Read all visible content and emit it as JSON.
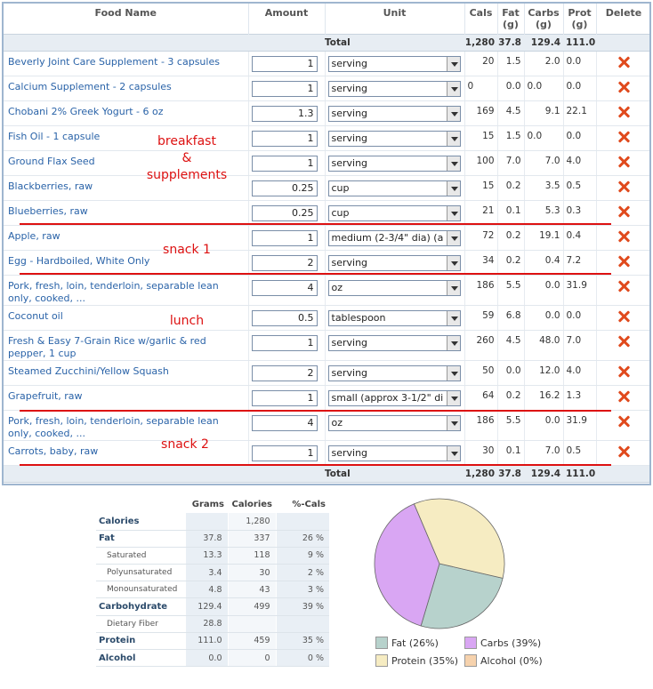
{
  "headers": {
    "food": "Food Name",
    "amount": "Amount",
    "unit": "Unit",
    "cals": "Cals",
    "fat": "Fat (g)",
    "carbs": "Carbs (g)",
    "prot": "Prot (g)",
    "delete": "Delete"
  },
  "total": {
    "label": "Total",
    "cals": "1,280",
    "fat": "37.8",
    "carbs": "129.4",
    "prot": "111.0"
  },
  "foods": [
    {
      "name": "Beverly Joint Care Supplement - 3 capsules",
      "amount": "1",
      "unit": "serving",
      "cals": "20",
      "fat": "1.5",
      "carbs": "2.0",
      "prot": "0.0"
    },
    {
      "name": "Calcium Supplement - 2 capsules",
      "amount": "1",
      "unit": "serving",
      "cals": "0",
      "fat": "0.0",
      "carbs": "0.0",
      "prot": "0.0"
    },
    {
      "name": "Chobani 2% Greek Yogurt - 6 oz",
      "amount": "1.3",
      "unit": "serving",
      "cals": "169",
      "fat": "4.5",
      "carbs": "9.1",
      "prot": "22.1"
    },
    {
      "name": "Fish Oil - 1 capsule",
      "amount": "1",
      "unit": "serving",
      "cals": "15",
      "fat": "1.5",
      "carbs": "0.0",
      "prot": "0.0"
    },
    {
      "name": "Ground Flax Seed",
      "amount": "1",
      "unit": "serving",
      "cals": "100",
      "fat": "7.0",
      "carbs": "7.0",
      "prot": "4.0"
    },
    {
      "name": "Blackberries, raw",
      "amount": "0.25",
      "unit": "cup",
      "cals": "15",
      "fat": "0.2",
      "carbs": "3.5",
      "prot": "0.5"
    },
    {
      "name": "Blueberries, raw",
      "amount": "0.25",
      "unit": "cup",
      "cals": "21",
      "fat": "0.1",
      "carbs": "5.3",
      "prot": "0.3"
    },
    {
      "name": "Apple, raw",
      "amount": "1",
      "unit": "medium (2-3/4\" dia) (a",
      "cals": "72",
      "fat": "0.2",
      "carbs": "19.1",
      "prot": "0.4"
    },
    {
      "name": "Egg - Hardboiled, White Only",
      "amount": "2",
      "unit": "serving",
      "cals": "34",
      "fat": "0.2",
      "carbs": "0.4",
      "prot": "7.2"
    },
    {
      "name": "Pork, fresh, loin, tenderloin, separable lean only, cooked, ...",
      "amount": "4",
      "unit": "oz",
      "cals": "186",
      "fat": "5.5",
      "carbs": "0.0",
      "prot": "31.9"
    },
    {
      "name": "Coconut oil",
      "amount": "0.5",
      "unit": "tablespoon",
      "cals": "59",
      "fat": "6.8",
      "carbs": "0.0",
      "prot": "0.0"
    },
    {
      "name": "Fresh & Easy 7-Grain Rice w/garlic & red pepper, 1 cup",
      "amount": "1",
      "unit": "serving",
      "cals": "260",
      "fat": "4.5",
      "carbs": "48.0",
      "prot": "7.0"
    },
    {
      "name": "Steamed Zucchini/Yellow Squash",
      "amount": "2",
      "unit": "serving",
      "cals": "50",
      "fat": "0.0",
      "carbs": "12.0",
      "prot": "4.0"
    },
    {
      "name": "Grapefruit, raw",
      "amount": "1",
      "unit": "small (approx 3-1/2\" di",
      "cals": "64",
      "fat": "0.2",
      "carbs": "16.2",
      "prot": "1.3"
    },
    {
      "name": "Pork, fresh, loin, tenderloin, separable lean only, cooked, ...",
      "amount": "4",
      "unit": "oz",
      "cals": "186",
      "fat": "5.5",
      "carbs": "0.0",
      "prot": "31.9"
    },
    {
      "name": "Carrots, baby, raw",
      "amount": "1",
      "unit": "serving",
      "cals": "30",
      "fat": "0.1",
      "carbs": "7.0",
      "prot": "0.5"
    }
  ],
  "annotations": {
    "breakfast": "breakfast\n&\nsupplements",
    "snack1": "snack 1",
    "lunch": "lunch",
    "snack2": "snack 2"
  },
  "nutrition": {
    "headers": {
      "grams": "Grams",
      "calories": "Calories",
      "pct": "%-Cals"
    },
    "rows": [
      {
        "label": "Calories",
        "grams": "",
        "calories": "1,280",
        "pct": ""
      },
      {
        "label": "Fat",
        "grams": "37.8",
        "calories": "337",
        "pct": "26 %"
      },
      {
        "label": "Saturated",
        "grams": "13.3",
        "calories": "118",
        "pct": "9 %"
      },
      {
        "label": "Polyunsaturated",
        "grams": "3.4",
        "calories": "30",
        "pct": "2 %"
      },
      {
        "label": "Monounsaturated",
        "grams": "4.8",
        "calories": "43",
        "pct": "3 %"
      },
      {
        "label": "Carbohydrate",
        "grams": "129.4",
        "calories": "499",
        "pct": "39 %"
      },
      {
        "label": "Dietary Fiber",
        "grams": "28.8",
        "calories": "",
        "pct": ""
      },
      {
        "label": "Protein",
        "grams": "111.0",
        "calories": "459",
        "pct": "35 %"
      },
      {
        "label": "Alcohol",
        "grams": "0.0",
        "calories": "0",
        "pct": "0 %"
      }
    ]
  },
  "chart_data": {
    "type": "pie",
    "categories": [
      "Fat",
      "Carbs",
      "Protein",
      "Alcohol"
    ],
    "values": [
      26,
      39,
      35,
      0
    ],
    "colors": [
      "#b7d2cc",
      "#d9a6f3",
      "#f6ecc2",
      "#f6d2ad"
    ],
    "legend": [
      "Fat (26%)",
      "Carbs (39%)",
      "Protein (35%)",
      "Alcohol (0%)"
    ]
  },
  "colors": {
    "link": "#2a63a8",
    "annotation": "#dd1111",
    "delete": "#e04a1d",
    "border": "#9fb6cf"
  }
}
